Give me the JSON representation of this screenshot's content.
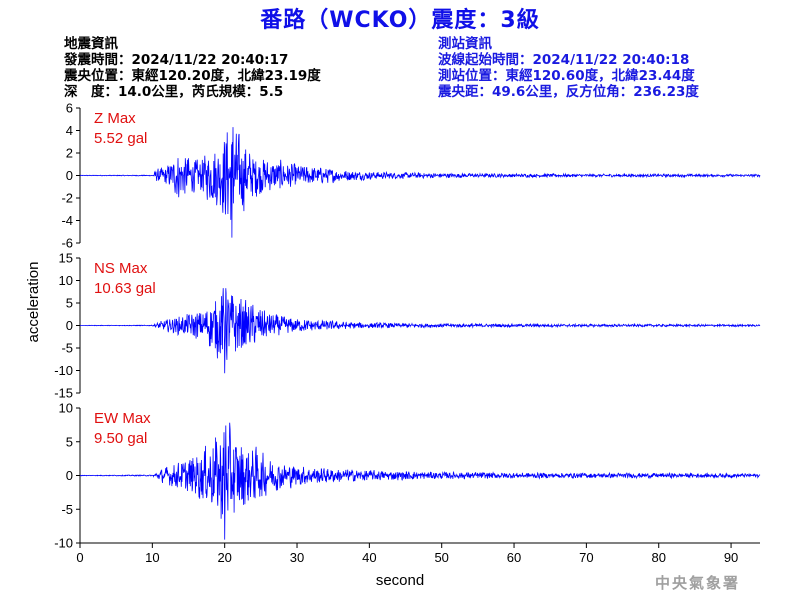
{
  "header": {
    "title": "番路（WCKO）震度：3級"
  },
  "quake_info": {
    "heading": "地震資訊",
    "origin_time": "發震時間：2024/11/22 20:40:17",
    "epicenter": "震央位置：東經120.20度，北緯23.19度",
    "depth_magnitude": "深　度：14.0公里，芮氏規模：5.5"
  },
  "station_info": {
    "heading": "測站資訊",
    "wave_start": "波線起始時間：2024/11/22 20:40:18",
    "location": "測站位置：東經120.60度，北緯23.44度",
    "distance": "震央距：49.6公里，反方位角：236.23度"
  },
  "watermark": "中央氣象署",
  "colors": {
    "trace": "#0000ff",
    "max_label": "#e01010",
    "title": "#1010e8",
    "station_text": "#1a1ae0"
  },
  "chart_data": {
    "type": "line",
    "xlabel": "second",
    "ylabel": "acceleration",
    "xlim": [
      0,
      94
    ],
    "x_ticks": [
      0,
      10,
      20,
      30,
      40,
      50,
      60,
      70,
      80,
      90
    ],
    "grid": false,
    "panels": [
      {
        "component": "Z",
        "max_label": "Z Max",
        "max_value": "5.52 gal",
        "max": 5.52,
        "ylim": [
          -6,
          6
        ],
        "y_ticks": [
          6,
          4,
          2,
          0,
          -2,
          -4,
          -6
        ],
        "onset": 10,
        "peak_time": 21,
        "envelope": [
          [
            0,
            0.03
          ],
          [
            10,
            0.05
          ],
          [
            10.5,
            0.6
          ],
          [
            12,
            1.0
          ],
          [
            13.5,
            2.5
          ],
          [
            15,
            2.0
          ],
          [
            16.5,
            1.5
          ],
          [
            18,
            2.8
          ],
          [
            19.5,
            3.5
          ],
          [
            20.5,
            5.5
          ],
          [
            22,
            4.2
          ],
          [
            24,
            2.2
          ],
          [
            26,
            1.7
          ],
          [
            28,
            1.5
          ],
          [
            30,
            1.1
          ],
          [
            33,
            0.9
          ],
          [
            36,
            0.6
          ],
          [
            40,
            0.4
          ],
          [
            45,
            0.3
          ],
          [
            55,
            0.2
          ],
          [
            70,
            0.15
          ],
          [
            94,
            0.12
          ]
        ]
      },
      {
        "component": "NS",
        "max_label": "NS Max",
        "max_value": "10.63 gal",
        "max": 10.63,
        "ylim": [
          -15,
          15
        ],
        "y_ticks": [
          15,
          10,
          5,
          0,
          -5,
          -10,
          -15
        ],
        "onset": 10,
        "peak_time": 20,
        "envelope": [
          [
            0,
            0.05
          ],
          [
            10,
            0.1
          ],
          [
            11,
            1.0
          ],
          [
            13,
            2.0
          ],
          [
            15,
            3.0
          ],
          [
            17,
            4.0
          ],
          [
            19,
            8.0
          ],
          [
            20,
            10.6
          ],
          [
            21.5,
            8.0
          ],
          [
            23,
            6.0
          ],
          [
            24.5,
            5.0
          ],
          [
            26.5,
            3.0
          ],
          [
            29,
            2.0
          ],
          [
            32,
            1.5
          ],
          [
            36,
            1.0
          ],
          [
            40,
            0.7
          ],
          [
            50,
            0.5
          ],
          [
            65,
            0.35
          ],
          [
            94,
            0.25
          ]
        ]
      },
      {
        "component": "EW",
        "max_label": "EW Max",
        "max_value": "9.50 gal",
        "max": 9.5,
        "ylim": [
          -10,
          10
        ],
        "y_ticks": [
          10,
          5,
          0,
          -5,
          -10
        ],
        "onset": 10,
        "peak_time": 20,
        "envelope": [
          [
            0,
            0.05
          ],
          [
            10,
            0.1
          ],
          [
            11,
            1.0
          ],
          [
            13,
            2.0
          ],
          [
            15,
            3.0
          ],
          [
            17,
            4.5
          ],
          [
            19,
            7.0
          ],
          [
            20,
            9.5
          ],
          [
            21.5,
            7.0
          ],
          [
            23,
            5.0
          ],
          [
            24.5,
            4.5
          ],
          [
            26,
            3.0
          ],
          [
            28,
            2.2
          ],
          [
            31,
            1.6
          ],
          [
            35,
            1.2
          ],
          [
            40,
            0.9
          ],
          [
            50,
            0.6
          ],
          [
            65,
            0.45
          ],
          [
            94,
            0.35
          ]
        ]
      }
    ]
  }
}
